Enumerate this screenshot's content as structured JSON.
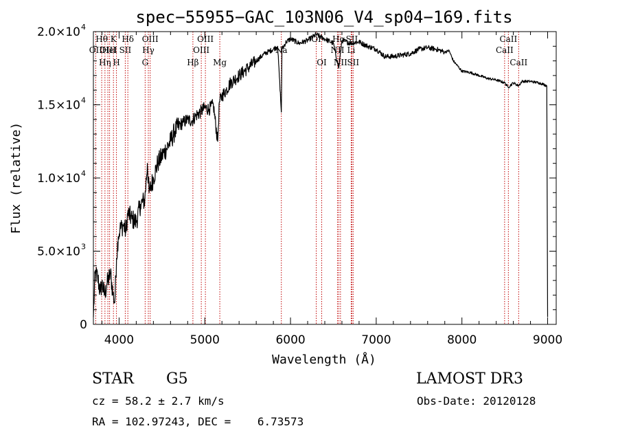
{
  "chart_data": {
    "type": "line",
    "title": "spec−55955−GAC_103N06_V4_sp04−169.fits",
    "xlabel": "Wavelength (Å)",
    "ylabel": "Flux (relative)",
    "xlim": [
      3700,
      9100
    ],
    "ylim": [
      0,
      20000
    ],
    "x_ticks": [
      4000,
      5000,
      6000,
      7000,
      8000,
      9000
    ],
    "x_tick_labels": [
      "4000",
      "5000",
      "6000",
      "7000",
      "8000",
      "9000"
    ],
    "y_ticks": [
      {
        "value": 0,
        "label": "0",
        "exp": ""
      },
      {
        "value": 5000,
        "label": "5.0×10",
        "exp": "3"
      },
      {
        "value": 10000,
        "label": "1.0×10",
        "exp": "4"
      },
      {
        "value": 15000,
        "label": "1.5×10",
        "exp": "4"
      },
      {
        "value": 20000,
        "label": "2.0×10",
        "exp": "4"
      }
    ],
    "spectrum": {
      "x": [
        3700,
        3720,
        3750,
        3780,
        3800,
        3830,
        3860,
        3900,
        3930,
        3950,
        3970,
        3990,
        4010,
        4050,
        4080,
        4100,
        4150,
        4200,
        4250,
        4300,
        4330,
        4350,
        4400,
        4450,
        4500,
        4550,
        4600,
        4650,
        4700,
        4750,
        4800,
        4850,
        4900,
        4950,
        5000,
        5050,
        5100,
        5150,
        5170,
        5200,
        5250,
        5300,
        5400,
        5500,
        5600,
        5700,
        5800,
        5850,
        5893,
        5900,
        5950,
        6000,
        6100,
        6200,
        6300,
        6400,
        6500,
        6563,
        6600,
        6700,
        6800,
        6900,
        7000,
        7100,
        7200,
        7300,
        7400,
        7500,
        7600,
        7700,
        7800,
        7850,
        7900,
        8000,
        8100,
        8200,
        8300,
        8400,
        8500,
        8540,
        8600,
        8662,
        8700,
        8800,
        8900,
        8950,
        8990,
        9000
      ],
      "y": [
        500,
        3500,
        3200,
        2200,
        2800,
        2000,
        2800,
        3500,
        2000,
        1500,
        4500,
        6000,
        6500,
        6800,
        6300,
        7600,
        7200,
        7000,
        8200,
        8500,
        11000,
        9000,
        10000,
        11000,
        11500,
        12000,
        12500,
        13200,
        13600,
        13800,
        14000,
        13900,
        14300,
        14500,
        14800,
        14700,
        15000,
        12500,
        15200,
        15600,
        16000,
        16500,
        17000,
        17500,
        18000,
        18500,
        18800,
        19000,
        14500,
        18800,
        19300,
        19500,
        19200,
        19400,
        19800,
        19500,
        19200,
        17500,
        19400,
        19200,
        19300,
        19000,
        18800,
        18300,
        18300,
        18400,
        18500,
        18800,
        18900,
        18800,
        18600,
        18700,
        18000,
        17300,
        17200,
        17000,
        16800,
        16700,
        16500,
        16200,
        16500,
        16300,
        16600,
        16600,
        16500,
        16400,
        16300,
        500
      ]
    },
    "lines": [
      {
        "name": "OII",
        "wavelength": 3727,
        "row": 2
      },
      {
        "name": "Hθ",
        "wavelength": 3797,
        "row": 1
      },
      {
        "name": "OIII",
        "wavelength": 3869,
        "row": 2
      },
      {
        "name": "HeI",
        "wavelength": 3889,
        "row": 2
      },
      {
        "name": "Hη",
        "wavelength": 3835,
        "row": 3
      },
      {
        "name": "K",
        "wavelength": 3934,
        "row": 1
      },
      {
        "name": "H",
        "wavelength": 3969,
        "row": 3
      },
      {
        "name": "SII",
        "wavelength": 4072,
        "row": 2
      },
      {
        "name": "Hδ",
        "wavelength": 4102,
        "row": 1
      },
      {
        "name": "G",
        "wavelength": 4304,
        "row": 3
      },
      {
        "name": "Hγ",
        "wavelength": 4341,
        "row": 2
      },
      {
        "name": "OIII",
        "wavelength": 4363,
        "row": 1
      },
      {
        "name": "Hβ",
        "wavelength": 4861,
        "row": 3
      },
      {
        "name": "OIII",
        "wavelength": 4959,
        "row": 2
      },
      {
        "name": "OIII",
        "wavelength": 5007,
        "row": 1
      },
      {
        "name": "Mg",
        "wavelength": 5175,
        "row": 3
      },
      {
        "name": "Na",
        "wavelength": 5893,
        "row": 2
      },
      {
        "name": "OI",
        "wavelength": 6300,
        "row": 1
      },
      {
        "name": "OI",
        "wavelength": 6364,
        "row": 3
      },
      {
        "name": "NII",
        "wavelength": 6548,
        "row": 2
      },
      {
        "name": "Hα",
        "wavelength": 6563,
        "row": 1
      },
      {
        "name": "NII",
        "wavelength": 6583,
        "row": 3
      },
      {
        "name": "Li",
        "wavelength": 6708,
        "row": 2
      },
      {
        "name": "SII",
        "wavelength": 6716,
        "row": 1
      },
      {
        "name": "SII",
        "wavelength": 6731,
        "row": 3
      },
      {
        "name": "CaII",
        "wavelength": 8498,
        "row": 2
      },
      {
        "name": "CaII",
        "wavelength": 8542,
        "row": 1
      },
      {
        "name": "CaII",
        "wavelength": 8662,
        "row": 3
      }
    ]
  },
  "info": {
    "object_type": "STAR",
    "subclass": "G5",
    "survey": "LAMOST DR3",
    "redshift_line": "cz = 58.2 ± 2.7 km/s",
    "obs_date_line": "Obs-Date: 20120128",
    "coords_line": "RA = 102.97243, DEC =    6.73573"
  }
}
